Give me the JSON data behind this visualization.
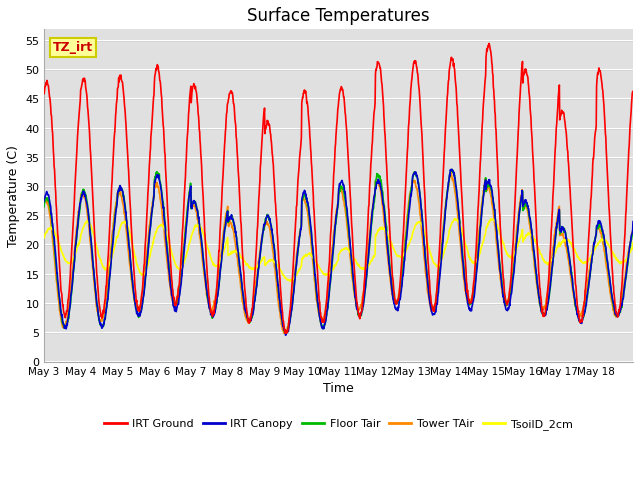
{
  "title": "Surface Temperatures",
  "xlabel": "Time",
  "ylabel": "Temperature (C)",
  "ylim": [
    0,
    57
  ],
  "yticks": [
    0,
    5,
    10,
    15,
    20,
    25,
    30,
    35,
    40,
    45,
    50,
    55
  ],
  "date_labels": [
    "May 3",
    "May 4",
    "May 5",
    "May 6",
    "May 7",
    "May 8",
    "May 9",
    "May 10",
    "May 11",
    "May 12",
    "May 13",
    "May 14",
    "May 15",
    "May 16",
    "May 17",
    "May 18"
  ],
  "n_days": 16,
  "annotation_text": "TZ_irt",
  "annotation_box_color": "#FFFF99",
  "annotation_border_color": "#CCCC00",
  "annotation_text_color": "#CC0000",
  "colors": {
    "IRT Ground": "#FF0000",
    "IRT Canopy": "#0000CC",
    "Floor Tair": "#00BB00",
    "Tower TAir": "#FF8800",
    "TsoilD_2cm": "#FFFF00"
  },
  "background_color": "#FFFFFF",
  "grid_color": "#CCCCCC",
  "plot_bg_color": "#E0E0E0",
  "figsize": [
    6.4,
    4.8
  ],
  "dpi": 100
}
